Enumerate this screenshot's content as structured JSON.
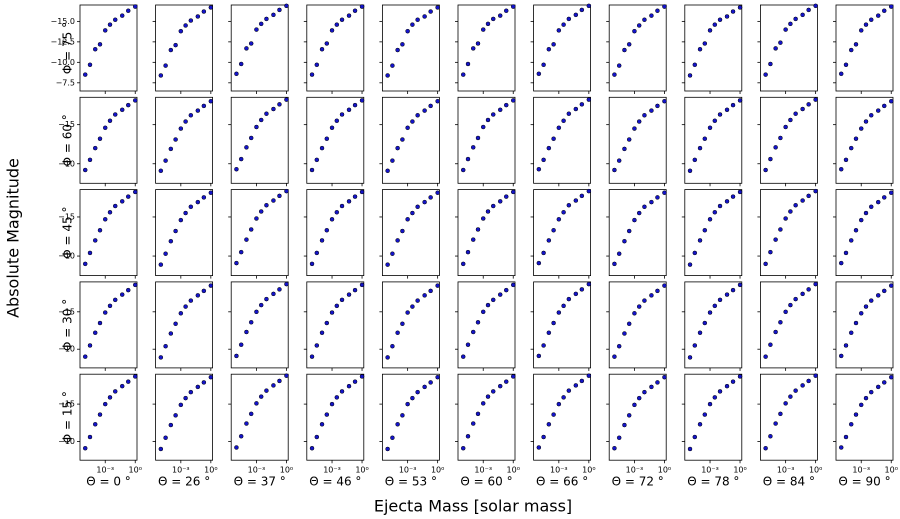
{
  "chart_data": {
    "type": "scatter-grid",
    "xlabel": "Ejecta Mass [solar mass]",
    "ylabel": "Absolute Magnitude",
    "color": "#1414c8",
    "xscale": "log",
    "x": [
      1e-05,
      3e-05,
      0.0001,
      0.0003,
      0.001,
      0.003,
      0.01,
      0.05,
      0.2,
      1
    ],
    "xlim": [
      3e-06,
      1.5
    ],
    "xticks": [
      {
        "value": 0.001,
        "label": "10⁻³"
      },
      {
        "value": 1,
        "label": "10⁰"
      }
    ],
    "columns": [
      "Θ = 0 °",
      "Θ = 26 °",
      "Θ = 37 °",
      "Θ = 46 °",
      "Θ = 53 °",
      "Θ = 60 °",
      "Θ = 66 °",
      "Θ = 72 °",
      "Θ = 78 °",
      "Θ = 84 °",
      "Θ = 90 °"
    ],
    "rows": [
      {
        "label": "Φ = 75 °",
        "ylim": [
          -6.5,
          -17
        ],
        "yticks": [
          {
            "value": -7.5,
            "label": "−7.5"
          },
          {
            "value": -10,
            "label": "−10.0"
          },
          {
            "value": -12.5,
            "label": "−12.5"
          },
          {
            "value": -15,
            "label": "−15.0"
          }
        ],
        "panels": [
          [
            -8.5,
            -9.7,
            -11.6,
            -12.2,
            -13.9,
            -14.6,
            -15.2,
            -15.7,
            -16.3,
            -16.8
          ],
          [
            -8.4,
            -9.6,
            -11.5,
            -12.1,
            -13.8,
            -14.5,
            -15.1,
            -15.6,
            -16.2,
            -16.7
          ],
          [
            -8.6,
            -9.8,
            -11.7,
            -12.3,
            -14.0,
            -14.7,
            -15.3,
            -15.8,
            -16.4,
            -16.9
          ],
          [
            -8.5,
            -9.7,
            -11.6,
            -12.3,
            -13.9,
            -14.6,
            -15.2,
            -15.7,
            -16.3,
            -16.8
          ],
          [
            -8.4,
            -9.6,
            -11.5,
            -12.2,
            -13.8,
            -14.6,
            -15.2,
            -15.6,
            -16.2,
            -16.7
          ],
          [
            -8.5,
            -9.8,
            -11.7,
            -12.3,
            -14.0,
            -14.7,
            -15.3,
            -15.7,
            -16.3,
            -16.8
          ],
          [
            -8.6,
            -9.7,
            -11.6,
            -12.2,
            -13.9,
            -14.6,
            -15.3,
            -15.8,
            -16.4,
            -16.9
          ],
          [
            -8.5,
            -9.6,
            -11.5,
            -12.2,
            -13.8,
            -14.5,
            -15.2,
            -15.7,
            -16.3,
            -16.8
          ],
          [
            -8.4,
            -9.7,
            -11.6,
            -12.3,
            -13.9,
            -14.6,
            -15.2,
            -15.6,
            -16.2,
            -16.7
          ],
          [
            -8.5,
            -9.8,
            -11.7,
            -12.4,
            -14.0,
            -14.7,
            -15.3,
            -15.8,
            -16.4,
            -16.9
          ],
          [
            -8.6,
            -9.7,
            -11.5,
            -12.2,
            -13.9,
            -14.6,
            -15.2,
            -15.7,
            -16.3,
            -16.8
          ]
        ]
      },
      {
        "label": "Φ = 60 °",
        "ylim": [
          -7.5,
          -18.5
        ],
        "yticks": [
          {
            "value": -10,
            "label": "−10"
          },
          {
            "value": -15,
            "label": "−15"
          }
        ],
        "panels": [
          [
            -9.2,
            -10.5,
            -12.0,
            -13.2,
            -14.6,
            -15.5,
            -16.3,
            -16.9,
            -17.5,
            -18.1
          ],
          [
            -9.1,
            -10.4,
            -11.9,
            -13.1,
            -14.5,
            -15.4,
            -16.2,
            -16.8,
            -17.4,
            -18.0
          ],
          [
            -9.3,
            -10.6,
            -12.1,
            -13.3,
            -14.7,
            -15.6,
            -16.4,
            -17.0,
            -17.6,
            -18.2
          ],
          [
            -9.2,
            -10.5,
            -12.0,
            -13.2,
            -14.6,
            -15.5,
            -16.3,
            -16.9,
            -17.5,
            -18.1
          ],
          [
            -9.1,
            -10.4,
            -12.0,
            -13.1,
            -14.6,
            -15.4,
            -16.2,
            -16.8,
            -17.4,
            -18.0
          ],
          [
            -9.2,
            -10.6,
            -12.1,
            -13.3,
            -14.7,
            -15.6,
            -16.3,
            -16.9,
            -17.5,
            -18.1
          ],
          [
            -9.3,
            -10.5,
            -12.0,
            -13.2,
            -14.6,
            -15.5,
            -16.4,
            -17.0,
            -17.6,
            -18.2
          ],
          [
            -9.2,
            -10.4,
            -11.9,
            -13.1,
            -14.5,
            -15.4,
            -16.2,
            -16.8,
            -17.4,
            -18.0
          ],
          [
            -9.1,
            -10.5,
            -12.0,
            -13.2,
            -14.6,
            -15.5,
            -16.3,
            -16.9,
            -17.5,
            -18.1
          ],
          [
            -9.2,
            -10.6,
            -12.1,
            -13.3,
            -14.7,
            -15.6,
            -16.4,
            -17.0,
            -17.6,
            -18.2
          ],
          [
            -9.3,
            -10.5,
            -12.0,
            -13.2,
            -14.5,
            -15.4,
            -16.2,
            -16.8,
            -17.4,
            -18.0
          ]
        ]
      },
      {
        "label": "Φ = 45 °",
        "ylim": [
          -7.5,
          -18.5
        ],
        "yticks": [
          {
            "value": -10,
            "label": "−10"
          },
          {
            "value": -15,
            "label": "−15"
          }
        ],
        "panels": [
          [
            -9.0,
            -10.4,
            -12.0,
            -13.3,
            -14.7,
            -15.6,
            -16.4,
            -17.0,
            -17.6,
            -18.2
          ],
          [
            -8.9,
            -10.3,
            -11.9,
            -13.2,
            -14.6,
            -15.5,
            -16.3,
            -16.9,
            -17.5,
            -18.1
          ],
          [
            -9.1,
            -10.5,
            -12.1,
            -13.4,
            -14.8,
            -15.7,
            -16.5,
            -17.1,
            -17.7,
            -18.3
          ],
          [
            -9.0,
            -10.4,
            -12.0,
            -13.3,
            -14.7,
            -15.6,
            -16.4,
            -17.0,
            -17.6,
            -18.2
          ],
          [
            -8.9,
            -10.3,
            -12.0,
            -13.2,
            -14.7,
            -15.5,
            -16.3,
            -16.9,
            -17.5,
            -18.1
          ],
          [
            -9.0,
            -10.5,
            -12.1,
            -13.4,
            -14.8,
            -15.7,
            -16.4,
            -17.0,
            -17.6,
            -18.2
          ],
          [
            -9.1,
            -10.4,
            -12.0,
            -13.3,
            -14.7,
            -15.6,
            -16.5,
            -17.1,
            -17.7,
            -18.3
          ],
          [
            -9.0,
            -10.3,
            -11.9,
            -13.2,
            -14.6,
            -15.5,
            -16.3,
            -16.9,
            -17.5,
            -18.1
          ],
          [
            -8.9,
            -10.4,
            -12.0,
            -13.3,
            -14.7,
            -15.6,
            -16.4,
            -17.0,
            -17.6,
            -18.2
          ],
          [
            -9.0,
            -10.5,
            -12.1,
            -13.4,
            -14.8,
            -15.7,
            -16.5,
            -17.1,
            -17.7,
            -18.3
          ],
          [
            -9.1,
            -10.4,
            -12.0,
            -13.3,
            -14.6,
            -15.5,
            -16.3,
            -16.9,
            -17.5,
            -18.1
          ]
        ]
      },
      {
        "label": "Φ = 30 °",
        "ylim": [
          -7.5,
          -19
        ],
        "yticks": [
          {
            "value": -10,
            "label": "−10"
          },
          {
            "value": -15,
            "label": "−15"
          }
        ],
        "panels": [
          [
            -9.0,
            -10.5,
            -12.2,
            -13.5,
            -14.9,
            -15.8,
            -16.6,
            -17.3,
            -17.9,
            -18.6
          ],
          [
            -8.9,
            -10.4,
            -12.1,
            -13.4,
            -14.8,
            -15.7,
            -16.5,
            -17.2,
            -17.8,
            -18.5
          ],
          [
            -9.1,
            -10.6,
            -12.3,
            -13.6,
            -15.0,
            -15.9,
            -16.7,
            -17.4,
            -18.0,
            -18.7
          ],
          [
            -9.0,
            -10.5,
            -12.2,
            -13.5,
            -14.9,
            -15.8,
            -16.6,
            -17.3,
            -17.9,
            -18.6
          ],
          [
            -8.9,
            -10.4,
            -12.2,
            -13.4,
            -14.9,
            -15.7,
            -16.5,
            -17.2,
            -17.8,
            -18.5
          ],
          [
            -9.0,
            -10.6,
            -12.3,
            -13.6,
            -15.0,
            -15.9,
            -16.6,
            -17.3,
            -17.9,
            -18.6
          ],
          [
            -9.1,
            -10.5,
            -12.2,
            -13.5,
            -14.9,
            -15.8,
            -16.7,
            -17.4,
            -18.0,
            -18.7
          ],
          [
            -9.0,
            -10.4,
            -12.1,
            -13.4,
            -14.8,
            -15.7,
            -16.5,
            -17.2,
            -17.8,
            -18.5
          ],
          [
            -8.9,
            -10.5,
            -12.2,
            -13.5,
            -14.9,
            -15.8,
            -16.6,
            -17.3,
            -17.9,
            -18.6
          ],
          [
            -9.0,
            -10.6,
            -12.3,
            -13.6,
            -15.0,
            -15.9,
            -16.7,
            -17.4,
            -18.0,
            -18.7
          ],
          [
            -9.1,
            -10.5,
            -12.2,
            -13.5,
            -14.8,
            -15.7,
            -16.5,
            -17.2,
            -17.8,
            -18.5
          ]
        ]
      },
      {
        "label": "Φ = 15 °",
        "ylim": [
          -7.5,
          -19
        ],
        "yticks": [
          {
            "value": -10,
            "label": "−10"
          },
          {
            "value": -15,
            "label": "−15"
          }
        ],
        "panels": [
          [
            -9.1,
            -10.6,
            -12.3,
            -13.6,
            -15.0,
            -15.9,
            -16.7,
            -17.4,
            -18.0,
            -18.7
          ],
          [
            -9.0,
            -10.5,
            -12.2,
            -13.5,
            -14.9,
            -15.8,
            -16.6,
            -17.3,
            -17.9,
            -18.6
          ],
          [
            -9.2,
            -10.7,
            -12.4,
            -13.7,
            -15.1,
            -16.0,
            -16.8,
            -17.5,
            -18.1,
            -18.8
          ],
          [
            -9.1,
            -10.6,
            -12.3,
            -13.6,
            -15.0,
            -15.9,
            -16.7,
            -17.4,
            -18.0,
            -18.7
          ],
          [
            -9.0,
            -10.5,
            -12.3,
            -13.5,
            -15.0,
            -15.8,
            -16.6,
            -17.3,
            -17.9,
            -18.6
          ],
          [
            -9.1,
            -10.7,
            -12.4,
            -13.7,
            -15.1,
            -16.0,
            -16.7,
            -17.4,
            -18.0,
            -18.7
          ],
          [
            -9.2,
            -10.6,
            -12.3,
            -13.6,
            -15.0,
            -15.9,
            -16.8,
            -17.5,
            -18.1,
            -18.8
          ],
          [
            -9.1,
            -10.5,
            -12.2,
            -13.5,
            -14.9,
            -15.8,
            -16.6,
            -17.3,
            -17.9,
            -18.6
          ],
          [
            -9.0,
            -10.6,
            -12.3,
            -13.6,
            -15.0,
            -15.9,
            -16.7,
            -17.4,
            -18.0,
            -18.7
          ],
          [
            -9.1,
            -10.7,
            -12.4,
            -13.7,
            -15.1,
            -16.0,
            -16.8,
            -17.5,
            -18.1,
            -18.8
          ],
          [
            -9.2,
            -10.6,
            -12.3,
            -13.6,
            -14.9,
            -15.8,
            -16.6,
            -17.3,
            -17.9,
            -18.6
          ]
        ]
      }
    ]
  }
}
